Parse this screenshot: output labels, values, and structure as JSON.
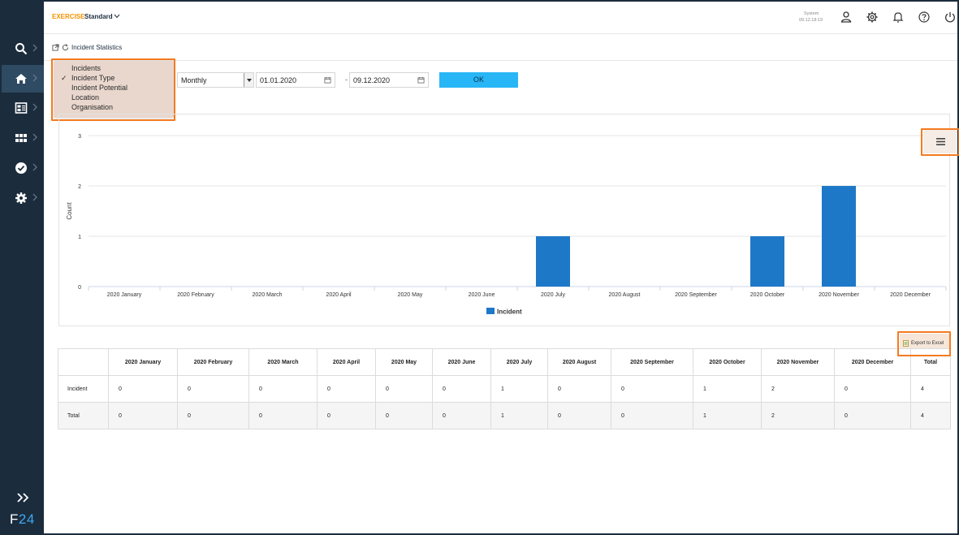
{
  "topbar": {
    "exercise_label": "EXERCISE",
    "exercise_value": "Standard",
    "system_label": "System",
    "system_time": "09.12.18:19",
    "icons": [
      "user-icon",
      "gear-icon",
      "bell-icon",
      "help-icon",
      "power-icon"
    ]
  },
  "sidebar": {
    "items": [
      {
        "icon": "search-icon"
      },
      {
        "icon": "home-icon",
        "active": true
      },
      {
        "icon": "dashboard-icon"
      },
      {
        "icon": "grid-icon"
      },
      {
        "icon": "check-circle-icon"
      },
      {
        "icon": "settings-icon"
      }
    ],
    "brand_prefix": "F",
    "brand_suffix": "24"
  },
  "breadcrumb": {
    "title": "Incident Statistics"
  },
  "filters": {
    "category_options": [
      "Incidents",
      "Incident Type",
      "Incident Potential",
      "Location",
      "Organisation"
    ],
    "category_selected": "Incident Type",
    "check_mark": "✓",
    "period": "Monthly",
    "date_from": "01.01.2020",
    "date_separator": "-",
    "date_to": "09.12.2020",
    "ok_label": "OK"
  },
  "chart_data": {
    "type": "bar",
    "categories": [
      "2020 January",
      "2020 February",
      "2020 March",
      "2020 April",
      "2020 May",
      "2020 June",
      "2020 July",
      "2020 August",
      "2020 September",
      "2020 October",
      "2020 November",
      "2020 December"
    ],
    "series": [
      {
        "name": "Incident",
        "values": [
          0,
          0,
          0,
          0,
          0,
          0,
          1,
          0,
          0,
          1,
          2,
          0
        ],
        "color": "#1e78c8"
      }
    ],
    "ylabel": "Count",
    "ylim": [
      0,
      3
    ],
    "yticks": [
      0,
      1,
      2,
      3
    ],
    "grid": true,
    "legend_placement": "bottom-center"
  },
  "table": {
    "export_label": "Export to Excel",
    "headers": [
      "",
      "2020 January",
      "2020 February",
      "2020 March",
      "2020 April",
      "2020 May",
      "2020 June",
      "2020 July",
      "2020 August",
      "2020 September",
      "2020 October",
      "2020 November",
      "2020 December",
      "Total"
    ],
    "rows": [
      {
        "label": "Incident",
        "values": [
          "0",
          "0",
          "0",
          "0",
          "0",
          "0",
          "1",
          "0",
          "0",
          "1",
          "2",
          "0",
          "4"
        ]
      },
      {
        "label": "Total",
        "values": [
          "0",
          "0",
          "0",
          "0",
          "0",
          "0",
          "1",
          "0",
          "0",
          "1",
          "2",
          "0",
          "4"
        ]
      }
    ]
  },
  "colors": {
    "sidebar": "#1b2c3d",
    "accent": "#f39200",
    "ok_button": "#29b6f6",
    "highlight": "#f47b20",
    "bar": "#1e78c8"
  }
}
